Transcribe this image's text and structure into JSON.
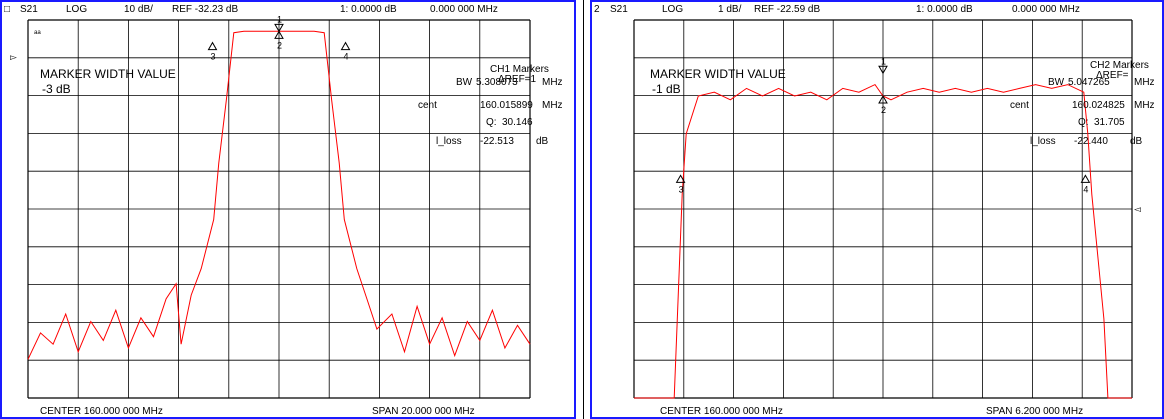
{
  "panels": [
    {
      "id": "ch1",
      "header": {
        "channel_mark": "□",
        "param": "S21",
        "format": "LOG",
        "scale": "10 dB/",
        "ref": "REF -32.23 dB",
        "marker1_readout": "1:  0.0000   dB",
        "marker1_freq": "0.000  000  MHz"
      },
      "top_left_glyph": "ᵃᵃ",
      "marker_width_title": "MARKER WIDTH VALUE",
      "marker_width_level": "-3 dB",
      "markers_title": "CH1 Markers",
      "ref_label": "ΔREF=1",
      "bw_label": "BW",
      "bw_value": "5.308073",
      "bw_unit": "MHz",
      "cent_label": "cent",
      "cent_value": "160.015899",
      "cent_unit": "MHz",
      "q_label": "Q:",
      "q_value": "30.146",
      "loss_label": "l_loss",
      "loss_value": "-22.513",
      "loss_unit": "dB",
      "marker_labels": [
        "1",
        "2",
        "3",
        "4"
      ],
      "center_text": "CENTER  160.000  000  MHz",
      "span_text": "SPAN  20.000  000  MHz",
      "colors": {
        "trace": "#ff0000",
        "border": "#1a1aff",
        "grid": "#000000"
      }
    },
    {
      "id": "ch2",
      "header": {
        "channel_mark": "2",
        "param": "S21",
        "format": "LOG",
        "scale": "1 dB/",
        "ref": "REF -22.59 dB",
        "marker1_readout": "1:  0.0000   dB",
        "marker1_freq": "0.000  000  MHz"
      },
      "marker_width_title": "MARKER WIDTH VALUE",
      "marker_width_level": "-1 dB",
      "markers_title": "CH2 Markers",
      "ref_label": "ΔREF=",
      "bw_label": "BW",
      "bw_value": "5.047265",
      "bw_unit": "MHz",
      "cent_label": "cent",
      "cent_value": "160.024825",
      "cent_unit": "MHz",
      "q_label": "Q:",
      "q_value": "31.705",
      "loss_label": "l_loss",
      "loss_value": "-22.440",
      "loss_unit": "dB",
      "marker_labels": [
        "1",
        "2",
        "3",
        "4"
      ],
      "center_text": "CENTER  160.000  000  MHz",
      "span_text": "SPAN  6.200  000  MHz",
      "colors": {
        "trace": "#ff0000",
        "border": "#1a1aff",
        "grid": "#000000"
      }
    }
  ],
  "chart_data": [
    {
      "type": "line",
      "title": "",
      "xlabel": "",
      "ylabel": "",
      "x_unit": "MHz",
      "xlim": [
        150.0,
        170.0
      ],
      "ylim": [
        -132.23,
        -32.23
      ],
      "grid": true,
      "series": [
        {
          "values": [
            [
              150.0,
              -122
            ],
            [
              150.5,
              -115
            ],
            [
              151.0,
              -118
            ],
            [
              151.5,
              -110
            ],
            [
              152.0,
              -120
            ],
            [
              152.5,
              -112
            ],
            [
              153.0,
              -117
            ],
            [
              153.5,
              -109
            ],
            [
              154.0,
              -119
            ],
            [
              154.5,
              -111
            ],
            [
              155.0,
              -116
            ],
            [
              155.5,
              -106
            ],
            [
              155.9,
              -102
            ],
            [
              156.1,
              -118
            ],
            [
              156.5,
              -105
            ],
            [
              156.9,
              -98
            ],
            [
              157.4,
              -85
            ],
            [
              157.6,
              -70
            ],
            [
              157.9,
              -53.5
            ],
            [
              158.2,
              -35.6
            ],
            [
              158.6,
              -35.23
            ],
            [
              160.0,
              -35.23
            ],
            [
              161.4,
              -35.23
            ],
            [
              161.8,
              -35.6
            ],
            [
              162.1,
              -53.5
            ],
            [
              162.4,
              -70
            ],
            [
              162.6,
              -85
            ],
            [
              163.1,
              -98
            ],
            [
              163.5,
              -106
            ],
            [
              163.9,
              -114
            ],
            [
              164.5,
              -110
            ],
            [
              165.0,
              -120
            ],
            [
              165.5,
              -108
            ],
            [
              166.0,
              -118
            ],
            [
              166.5,
              -111
            ],
            [
              167.0,
              -121
            ],
            [
              167.5,
              -112
            ],
            [
              168.0,
              -117
            ],
            [
              168.5,
              -109
            ],
            [
              169.0,
              -119
            ],
            [
              169.5,
              -113
            ],
            [
              170.0,
              -118
            ]
          ]
        }
      ],
      "markers": [
        {
          "label": "1",
          "x": 160.0,
          "y": -35.23
        },
        {
          "label": "2",
          "x": 160.0,
          "y": -35.23
        },
        {
          "label": "3",
          "x": 157.35,
          "y": -38.2
        },
        {
          "label": "4",
          "x": 162.65,
          "y": -38.2
        }
      ],
      "annotations": [
        "MARKER WIDTH VALUE",
        "-3 dB"
      ]
    },
    {
      "type": "line",
      "title": "",
      "xlabel": "",
      "ylabel": "",
      "x_unit": "MHz",
      "xlim": [
        156.9,
        163.1
      ],
      "ylim": [
        -32.59,
        -22.59
      ],
      "grid": true,
      "series": [
        {
          "values": [
            [
              156.9,
              -32.59
            ],
            [
              157.4,
              -32.59
            ],
            [
              157.5,
              -27.2
            ],
            [
              157.55,
              -25.6
            ],
            [
              157.7,
              -24.6
            ],
            [
              157.9,
              -24.5
            ],
            [
              158.1,
              -24.7
            ],
            [
              158.3,
              -24.4
            ],
            [
              158.5,
              -24.6
            ],
            [
              158.7,
              -24.4
            ],
            [
              158.9,
              -24.6
            ],
            [
              159.1,
              -24.5
            ],
            [
              159.3,
              -24.7
            ],
            [
              159.5,
              -24.4
            ],
            [
              159.7,
              -24.5
            ],
            [
              159.9,
              -24.3
            ],
            [
              160.0,
              -24.6
            ],
            [
              160.1,
              -24.7
            ],
            [
              160.3,
              -24.5
            ],
            [
              160.5,
              -24.4
            ],
            [
              160.7,
              -24.5
            ],
            [
              160.9,
              -24.4
            ],
            [
              161.1,
              -24.5
            ],
            [
              161.3,
              -24.4
            ],
            [
              161.5,
              -24.5
            ],
            [
              161.7,
              -24.4
            ],
            [
              161.9,
              -24.3
            ],
            [
              162.1,
              -24.4
            ],
            [
              162.3,
              -24.3
            ],
            [
              162.5,
              -24.5
            ],
            [
              162.55,
              -25.6
            ],
            [
              162.6,
              -27.2
            ],
            [
              162.75,
              -30.5
            ],
            [
              162.8,
              -32.59
            ],
            [
              163.1,
              -32.59
            ]
          ]
        }
      ],
      "markers": [
        {
          "label": "1",
          "x": 160.0,
          "y": -24.0
        },
        {
          "label": "2",
          "x": 160.0,
          "y": -24.6
        },
        {
          "label": "3",
          "x": 157.48,
          "y": -26.7
        },
        {
          "label": "4",
          "x": 162.52,
          "y": -26.7
        }
      ],
      "annotations": [
        "MARKER WIDTH VALUE",
        "-1 dB"
      ]
    }
  ]
}
